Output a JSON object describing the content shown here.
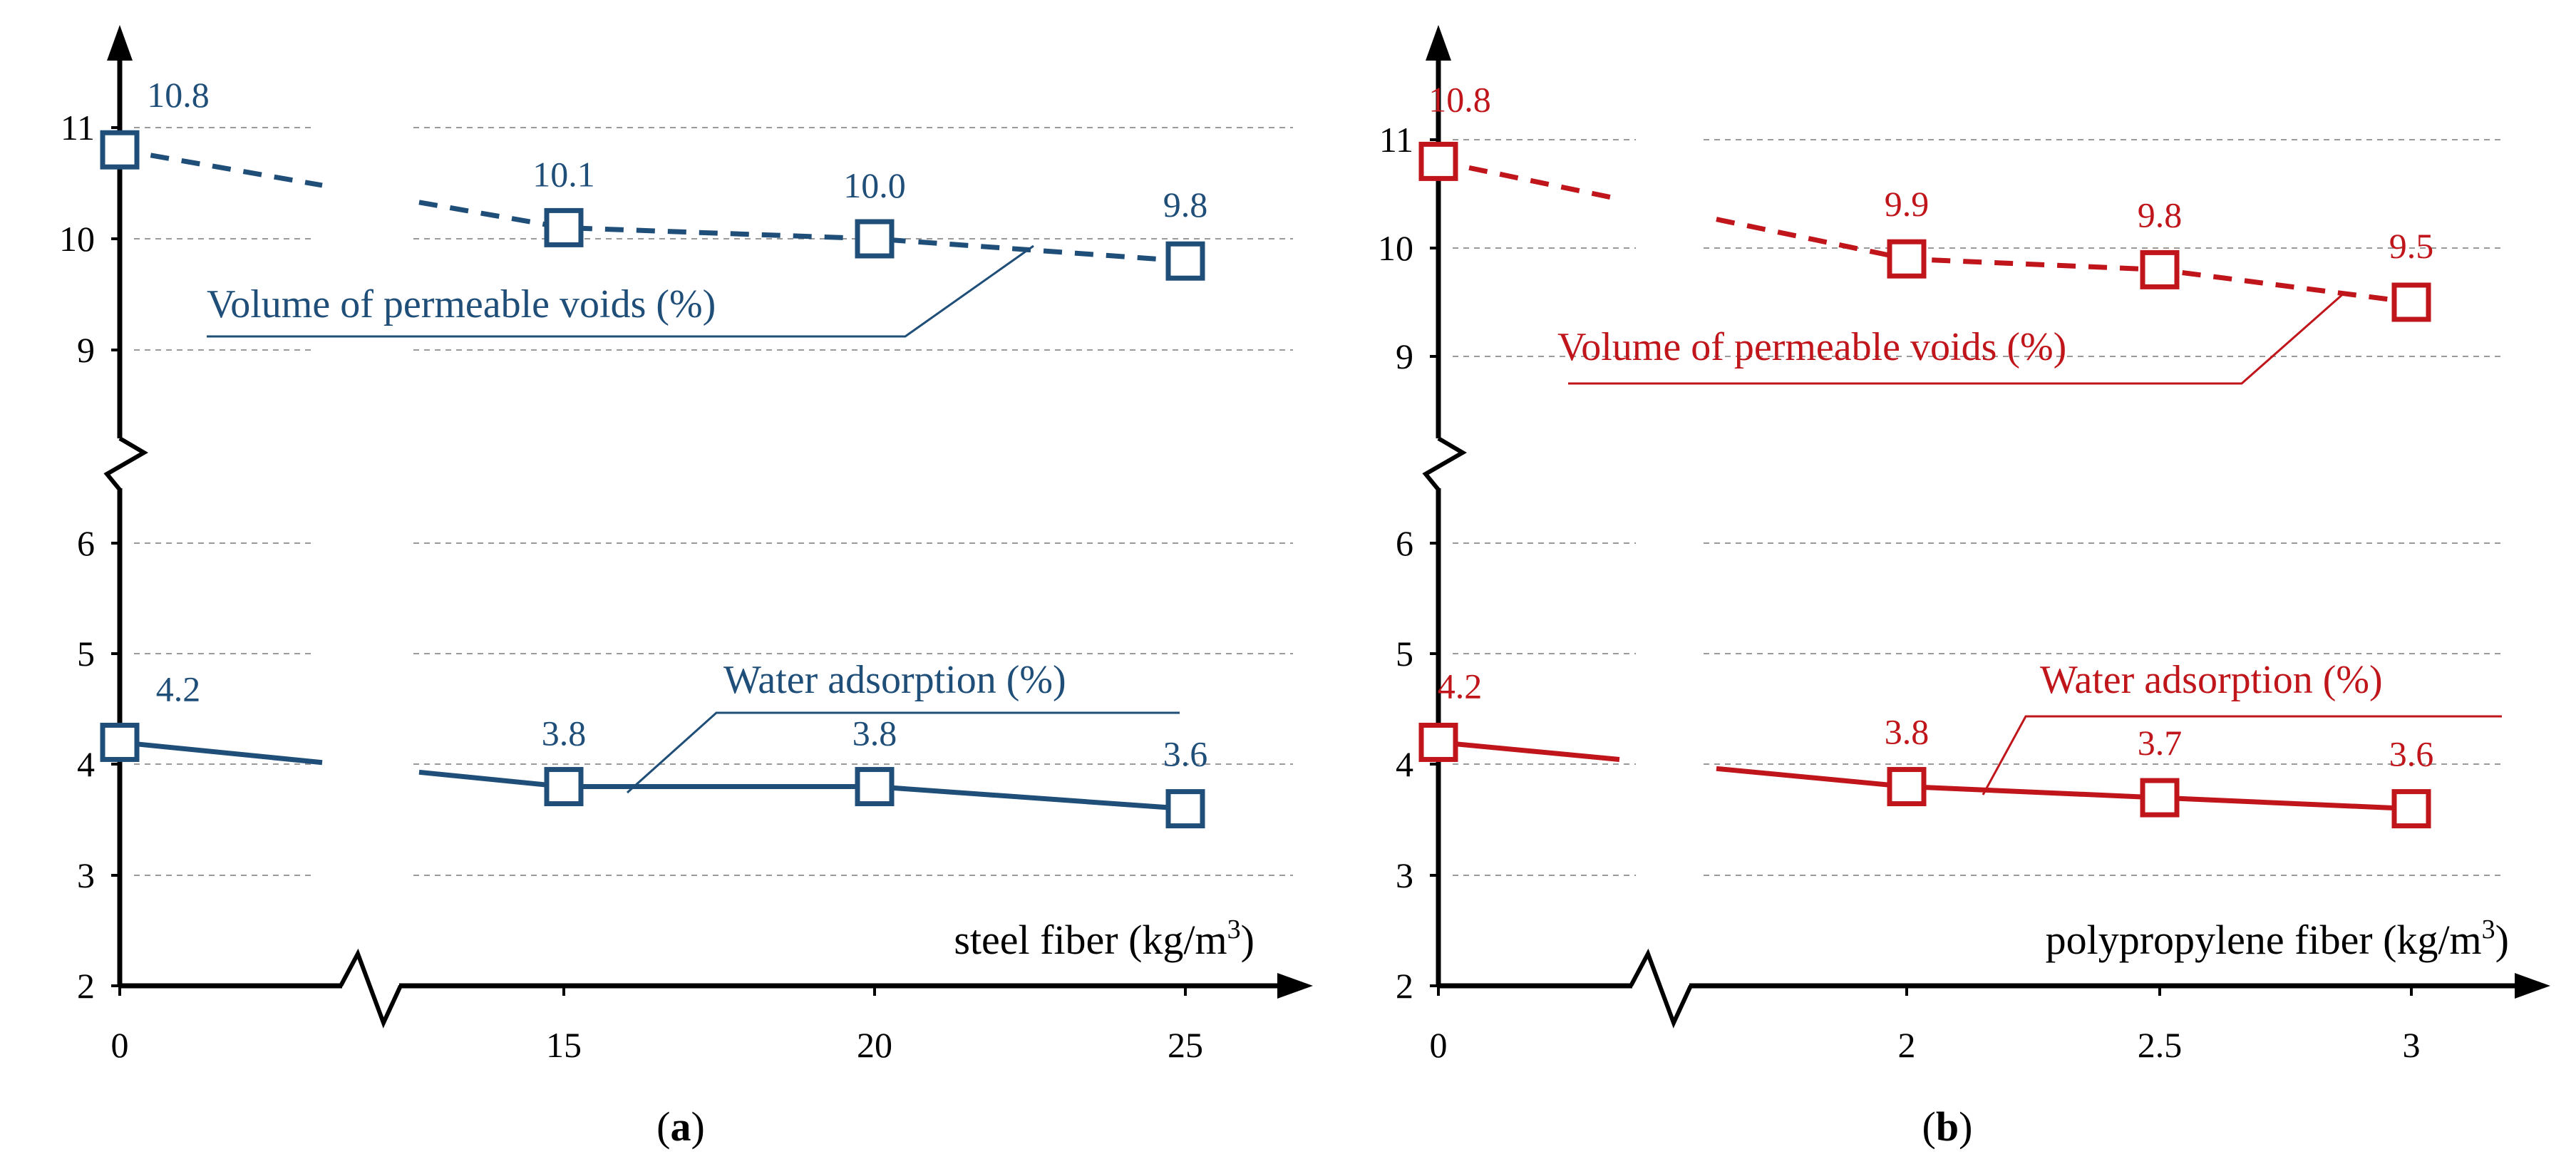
{
  "chart_data": [
    {
      "type": "line",
      "panel": "(a)",
      "caption_letter": "a",
      "xlabel": "steel fiber  (kg/m",
      "xlabel_sup": "3",
      "xlabel_close": ")",
      "x_ticks": [
        "0",
        "15",
        "20",
        "25"
      ],
      "y_ticks_upper": [
        "9",
        "10",
        "11"
      ],
      "y_ticks_lower": [
        "2",
        "3",
        "4",
        "5",
        "6"
      ],
      "color": "#1f4e79",
      "series": [
        {
          "name": "Volume of permeable voids (%)",
          "style": "dashed",
          "x": [
            "0",
            "15",
            "20",
            "25"
          ],
          "values": [
            10.8,
            10.1,
            10.0,
            9.8
          ],
          "labels": [
            "10.8",
            "10.1",
            "10.0",
            "9.8"
          ]
        },
        {
          "name": "Water adsorption (%)",
          "style": "solid",
          "x": [
            "0",
            "15",
            "20",
            "25"
          ],
          "values": [
            4.2,
            3.8,
            3.8,
            3.6
          ],
          "labels": [
            "4.2",
            "3.8",
            "3.8",
            "3.6"
          ]
        }
      ]
    },
    {
      "type": "line",
      "panel": "(b)",
      "caption_letter": "b",
      "xlabel": "polypropylene fiber  (kg/m",
      "xlabel_sup": "3",
      "xlabel_close": ")",
      "x_ticks": [
        "0",
        "2",
        "2.5",
        "3"
      ],
      "y_ticks_upper": [
        "9",
        "10",
        "11"
      ],
      "y_ticks_lower": [
        "2",
        "3",
        "4",
        "5",
        "6"
      ],
      "color": "#c0161b",
      "series": [
        {
          "name": "Volume of permeable voids (%)",
          "style": "dashed",
          "x": [
            "0",
            "2",
            "2.5",
            "3"
          ],
          "values": [
            10.8,
            9.9,
            9.8,
            9.5
          ],
          "labels": [
            "10.8",
            "9.9",
            "9.8",
            "9.5"
          ]
        },
        {
          "name": "Water adsorption (%)",
          "style": "solid",
          "x": [
            "0",
            "2",
            "2.5",
            "3"
          ],
          "values": [
            4.2,
            3.8,
            3.7,
            3.6
          ],
          "labels": [
            "4.2",
            "3.8",
            "3.7",
            "3.6"
          ]
        }
      ]
    }
  ]
}
